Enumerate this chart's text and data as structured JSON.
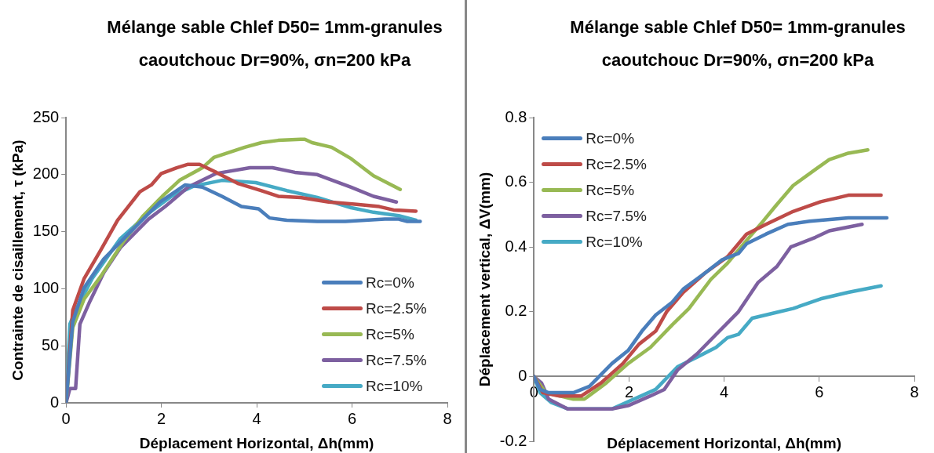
{
  "chart_data": [
    {
      "type": "line",
      "title": "Mélange sable Chlef D50= 1mm-granules  caoutchouc Dr=90%, σn=200 kPa",
      "xlabel": "Déplacement Horizontal, Δh(mm)",
      "ylabel": "Contrainte de cisaillement, τ (kPa)",
      "xlim": [
        0,
        8
      ],
      "xticks": [
        0,
        2,
        4,
        6,
        8
      ],
      "ylim": [
        0,
        250
      ],
      "yticks": [
        0,
        50,
        100,
        150,
        200,
        250
      ],
      "grid": false,
      "legend": "bottom right",
      "marker": "none",
      "series": [
        {
          "name": "Rc=0%",
          "color": "#4a7ebb",
          "x": [
            0,
            0.14,
            0.38,
            0.79,
            1.38,
            1.97,
            2.5,
            2.86,
            3.27,
            3.68,
            4.04,
            4.27,
            4.63,
            5.27,
            5.86,
            6.69,
            6.98,
            7.16,
            7.43
          ],
          "values": [
            0,
            71,
            101,
            126,
            151,
            176,
            191,
            189,
            181,
            172,
            170,
            162,
            160,
            159,
            159,
            161,
            161,
            159,
            159
          ]
        },
        {
          "name": "Rc=2.5%",
          "color": "#be4b48",
          "x": [
            0,
            0.14,
            0.38,
            0.73,
            1.08,
            1.55,
            1.79,
            2.0,
            2.32,
            2.56,
            2.8,
            3.15,
            3.62,
            4.09,
            4.45,
            4.92,
            5.51,
            6.1,
            6.57,
            6.87,
            7.34
          ],
          "values": [
            0,
            81,
            109,
            134,
            160,
            185,
            191,
            201,
            206,
            209,
            209,
            202,
            192,
            186,
            181,
            180,
            176,
            174,
            172,
            169,
            168
          ]
        },
        {
          "name": "Rc=5%",
          "color": "#98b954",
          "x": [
            0,
            0.14,
            0.38,
            0.73,
            1.2,
            1.62,
            2.02,
            2.38,
            2.86,
            3.1,
            3.75,
            4.1,
            4.45,
            4.92,
            5.01,
            5.16,
            5.57,
            5.98,
            6.45,
            7.01
          ],
          "values": [
            0,
            66,
            91,
            111,
            141,
            164,
            181,
            195,
            206,
            215,
            224,
            228,
            230,
            231,
            231,
            228,
            224,
            214,
            199,
            187
          ]
        },
        {
          "name": "Rc=7.5%",
          "color": "#7d60a0",
          "x": [
            0,
            0.08,
            0.2,
            0.29,
            0.5,
            0.79,
            1.14,
            1.73,
            2.08,
            2.56,
            3.15,
            3.86,
            4.33,
            4.8,
            5.27,
            5.98,
            6.45,
            6.93
          ],
          "values": [
            0,
            12.5,
            12.5,
            69,
            89,
            114,
            136,
            161,
            172,
            189,
            201,
            206,
            206,
            202,
            200,
            189,
            181,
            176
          ]
        },
        {
          "name": "Rc=10%",
          "color": "#46aac5",
          "x": [
            0,
            0.08,
            0.2,
            0.55,
            1.14,
            1.73,
            2.21,
            2.68,
            3.27,
            3.98,
            4.63,
            5.27,
            5.98,
            6.45,
            6.98,
            7.34
          ],
          "values": [
            0,
            69,
            81,
            109,
            144,
            166,
            181,
            190,
            195,
            193,
            186,
            180,
            171,
            167,
            164,
            160
          ]
        }
      ]
    },
    {
      "type": "line",
      "title": "Mélange sable Chlef D50= 1mm-granules caoutchouc Dr=90%, σn=200 kPa",
      "xlabel": "Déplacement Horizontal, Δh(mm)",
      "ylabel": "Déplacement vertical, ΔV(mm)",
      "xlim": [
        0,
        8
      ],
      "xticks": [
        0,
        2,
        4,
        6,
        8
      ],
      "ylim": [
        -0.2,
        0.8
      ],
      "yticks": [
        -0.2,
        0,
        0.2,
        0.4,
        0.6,
        0.8
      ],
      "grid": false,
      "legend": "top left",
      "marker": "none",
      "series": [
        {
          "name": "Rc=0%",
          "color": "#4a7ebb",
          "x": [
            0,
            0.13,
            0.31,
            0.83,
            1.17,
            1.64,
            1.98,
            2.27,
            2.56,
            2.91,
            3.14,
            3.6,
            3.95,
            4.3,
            4.47,
            4.88,
            5.34,
            5.8,
            6.61,
            7.42
          ],
          "values": [
            0,
            -0.04,
            -0.05,
            -0.05,
            -0.03,
            0.04,
            0.08,
            0.14,
            0.19,
            0.23,
            0.27,
            0.32,
            0.36,
            0.38,
            0.41,
            0.44,
            0.47,
            0.48,
            0.49,
            0.49
          ]
        },
        {
          "name": "Rc=2.5%",
          "color": "#be4b48",
          "x": [
            0,
            0.19,
            0.54,
            1.0,
            1.41,
            1.87,
            2.21,
            2.56,
            2.79,
            3.14,
            3.6,
            4.07,
            4.47,
            4.88,
            5.45,
            6.03,
            6.61,
            7.3
          ],
          "values": [
            0,
            -0.05,
            -0.06,
            -0.06,
            -0.02,
            0.04,
            0.1,
            0.14,
            0.2,
            0.26,
            0.32,
            0.37,
            0.44,
            0.47,
            0.51,
            0.54,
            0.56,
            0.56
          ]
        },
        {
          "name": "Rc=5%",
          "color": "#98b954",
          "x": [
            0,
            0.25,
            0.54,
            0.83,
            1.06,
            1.52,
            1.98,
            2.45,
            2.91,
            3.26,
            3.72,
            4.07,
            4.41,
            4.82,
            5.1,
            5.45,
            5.92,
            6.21,
            6.61,
            7.02
          ],
          "values": [
            0,
            -0.05,
            -0.06,
            -0.07,
            -0.07,
            -0.02,
            0.04,
            0.09,
            0.16,
            0.21,
            0.3,
            0.35,
            0.41,
            0.48,
            0.53,
            0.59,
            0.64,
            0.67,
            0.69,
            0.7
          ]
        },
        {
          "name": "Rc=7.5%",
          "color": "#7d60a0",
          "x": [
            0,
            0.16,
            0.31,
            0.71,
            1.64,
            1.98,
            2.45,
            2.74,
            3.02,
            3.43,
            3.83,
            4.3,
            4.71,
            5.11,
            5.4,
            5.92,
            6.21,
            6.9
          ],
          "values": [
            0,
            -0.02,
            -0.07,
            -0.1,
            -0.1,
            -0.09,
            -0.06,
            -0.04,
            0.02,
            0.07,
            0.13,
            0.2,
            0.29,
            0.34,
            0.4,
            0.43,
            0.45,
            0.47
          ]
        },
        {
          "name": "Rc=10%",
          "color": "#46aac5",
          "x": [
            0,
            0.13,
            0.36,
            0.71,
            1.64,
            2.1,
            2.56,
            3.02,
            3.43,
            3.83,
            4.07,
            4.3,
            4.59,
            5.16,
            5.45,
            6.03,
            6.61,
            7.3
          ],
          "values": [
            0,
            -0.05,
            -0.08,
            -0.1,
            -0.1,
            -0.07,
            -0.04,
            0.03,
            0.06,
            0.09,
            0.12,
            0.13,
            0.18,
            0.2,
            0.21,
            0.24,
            0.26,
            0.28
          ]
        }
      ]
    }
  ]
}
